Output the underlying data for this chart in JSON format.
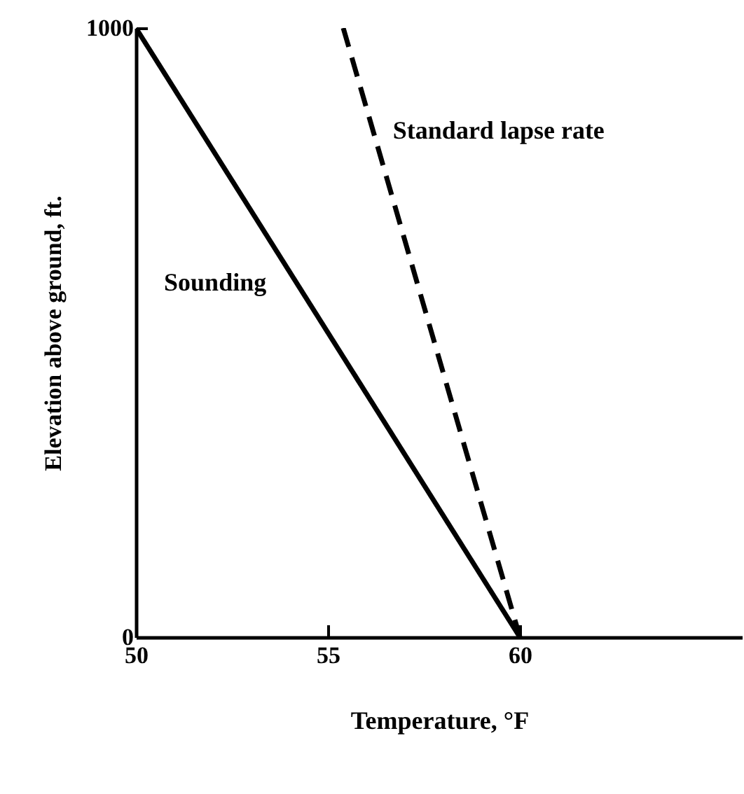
{
  "chart_data": {
    "type": "line",
    "xlabel": "Temperature, °F",
    "ylabel": "Elevation above ground, ft.",
    "xlim": [
      50,
      65.8
    ],
    "ylim": [
      0,
      1000
    ],
    "xticks": [
      50,
      55,
      60
    ],
    "yticks": [
      0,
      1000
    ],
    "grid": false,
    "series": [
      {
        "name": "Sounding",
        "color": "#000000",
        "x": [
          50,
          60
        ],
        "values": [
          1000,
          0
        ],
        "line_style": "solid"
      },
      {
        "name": "Standard lapse rate",
        "color": "#000000",
        "x": [
          55.4,
          60
        ],
        "values": [
          1000,
          0
        ],
        "line_style": "dashed"
      }
    ]
  }
}
